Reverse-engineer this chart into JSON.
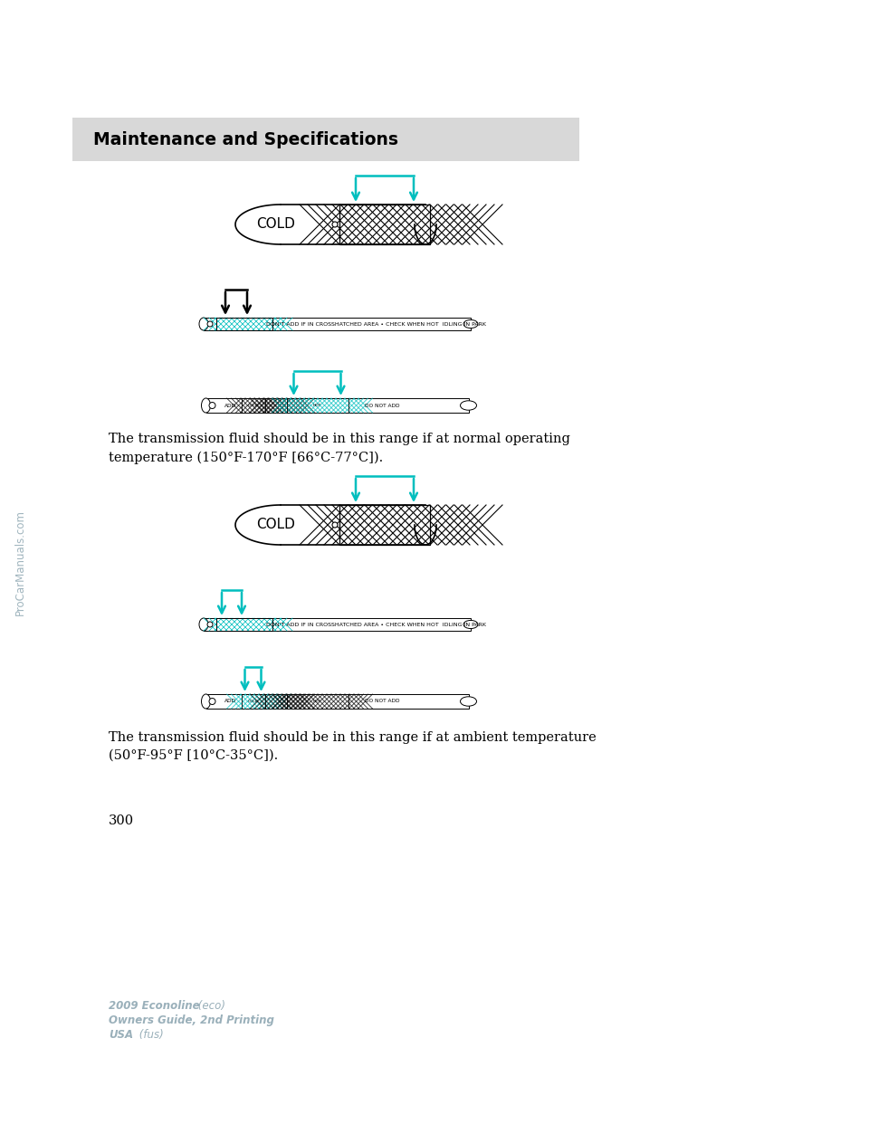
{
  "page_bg": "#ffffff",
  "header_bg": "#d8d8d8",
  "header_text": "Maintenance and Specifications",
  "header_text_color": "#000000",
  "arrow_color": "#00bebe",
  "text1": "The transmission fluid should be in this range if at normal operating\ntemperature (150°F-170°F [66°C-77°C]).",
  "text2": "The transmission fluid should be in this range if at ambient temperature\n(50°F-95°F [10°C-35°C]).",
  "page_number": "300",
  "footer_line1_bold": "2009 Econoline",
  "footer_line1_italic": " (eco)",
  "footer_line2": "Owners Guide, 2nd Printing",
  "footer_line3_bold": "USA",
  "footer_line3_italic": " (fus)",
  "footer_color": "#9ab0ba",
  "watermark": "ProCarManuals.com",
  "watermark_color": "#a0b5be"
}
